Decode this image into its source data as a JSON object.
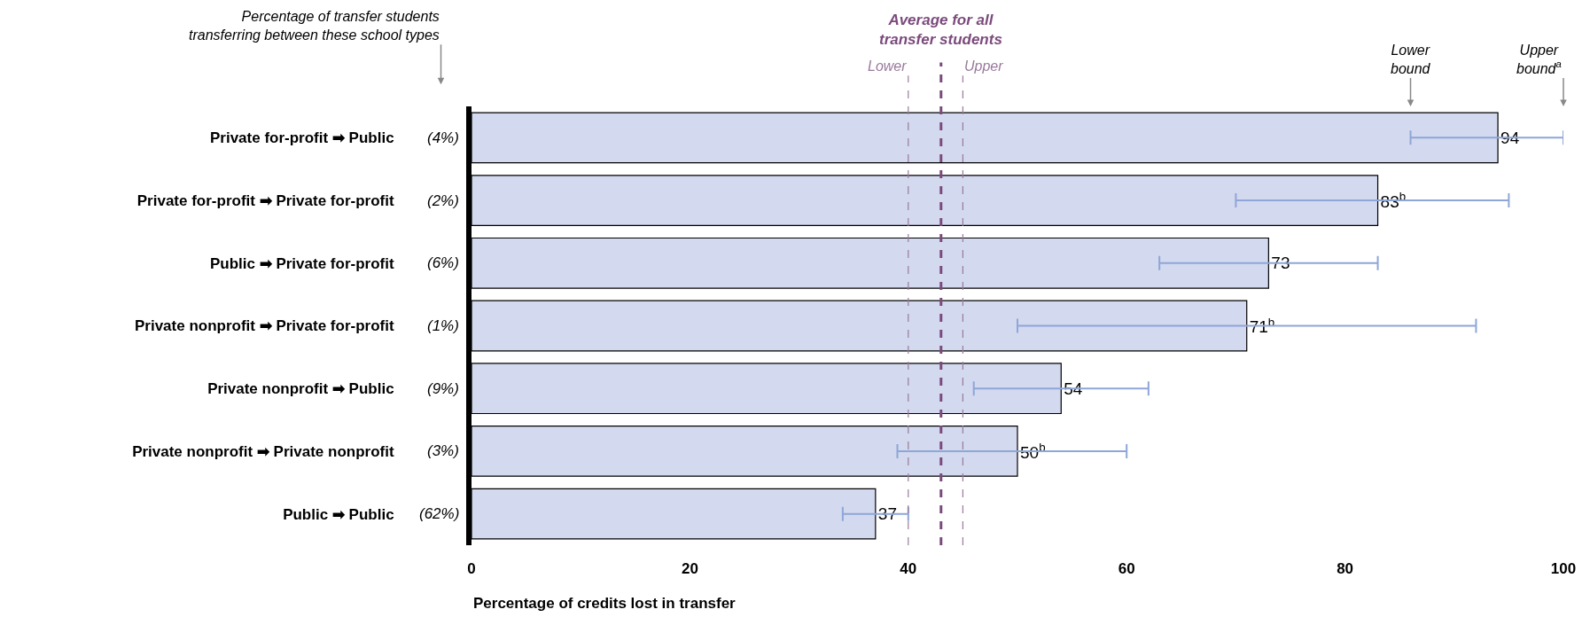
{
  "chart_data": {
    "type": "bar",
    "orientation": "horizontal",
    "xlabel": "Percentage of credits lost in transfer",
    "categories": [
      "Private for-profit ➡ Public",
      "Private for-profit ➡ Private for-profit",
      "Public ➡ Private for-profit",
      "Private nonprofit ➡ Private for-profit",
      "Private nonprofit ➡ Public",
      "Private nonprofit ➡ Private nonprofit",
      "Public ➡ Public"
    ],
    "values": [
      94,
      83,
      73,
      71,
      54,
      50,
      37
    ],
    "value_labels": [
      "94",
      "83$^{b}$",
      "73",
      "71$^{b}$",
      "54",
      "50$^{b}$",
      "37"
    ],
    "errors": [
      [
        86,
        100
      ],
      [
        70,
        95
      ],
      [
        63,
        83
      ],
      [
        50,
        92
      ],
      [
        46,
        62
      ],
      [
        39,
        60
      ],
      [
        34,
        40
      ]
    ],
    "color": "#d3d9ee",
    "xlim": [
      0,
      100
    ],
    "xticks": [
      0,
      20,
      40,
      60,
      80,
      100
    ],
    "grid": false,
    "legend": false,
    "ref_lines": [
      {
        "axis": "x",
        "value": 43,
        "label": "Average for all transfer students",
        "color": "#7b4a7c",
        "line_style": "dashed"
      },
      {
        "axis": "x",
        "value": 40,
        "label": "Lower",
        "color": "#9a7a9c",
        "line_style": "dashed"
      },
      {
        "axis": "x",
        "value": 45,
        "label": "Upper",
        "color": "#9a7a9c",
        "line_style": "dashed"
      }
    ],
    "annotations": [
      "Percentage of transfer students\ntransferring between these school types",
      "(4%)",
      "(2%)",
      "(6%)",
      "(1%)",
      "(9%)",
      "(3%)",
      "(62%)",
      "Lower\nbound",
      "Upper\nbound$^{a}$"
    ]
  }
}
